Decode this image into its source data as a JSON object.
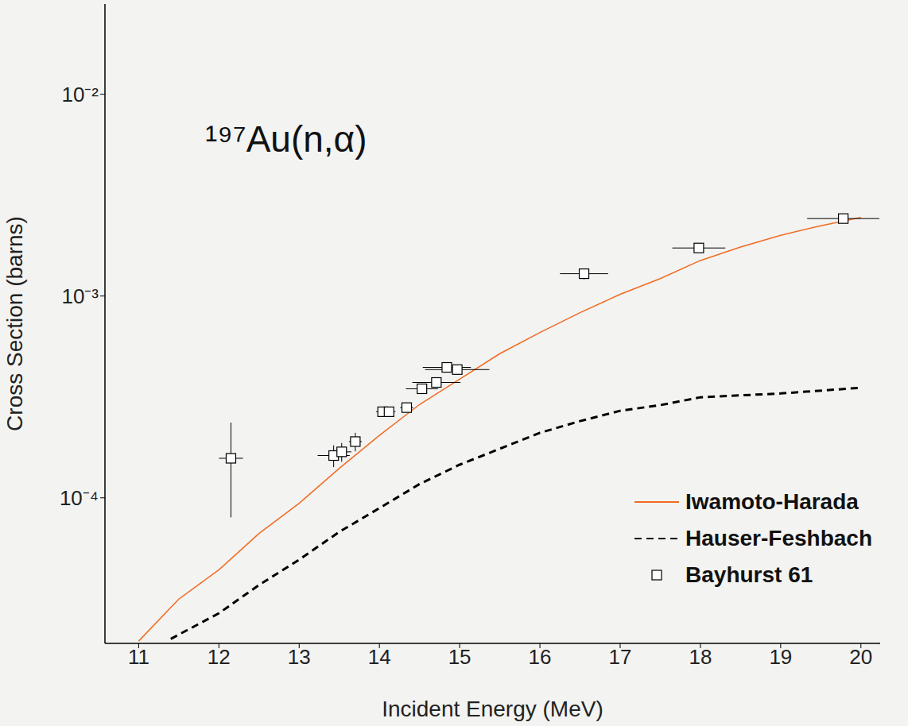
{
  "chart_data": {
    "type": "line",
    "title": "¹⁹⁷Au(n,α)",
    "x_label": "Incident Energy (MeV)",
    "y_label": "Cross Section (barns)",
    "log": "y",
    "grid": false,
    "legend": "lower right",
    "xlim": [
      10.58,
      20.24
    ],
    "xticks": [
      11,
      12,
      13,
      14,
      15,
      16,
      17,
      18,
      19,
      20
    ],
    "ylim": [
      1.9e-05,
      0.028
    ],
    "yticks": [
      {
        "value": 0.0001,
        "label": "10⁻⁴"
      },
      {
        "value": 0.001,
        "label": "10⁻³"
      },
      {
        "value": 0.01,
        "label": "10⁻²"
      }
    ],
    "series": [
      {
        "name": "Iwamoto-Harada",
        "type": "line",
        "color": "#f26b21",
        "line_style": "solid",
        "x": [
          11.0,
          11.5,
          12.0,
          12.5,
          13.0,
          13.5,
          14.0,
          14.5,
          15.0,
          15.5,
          16.0,
          16.5,
          17.0,
          17.5,
          18.0,
          18.5,
          19.0,
          19.5,
          20.0
        ],
        "values": [
          1.95e-05,
          3.15e-05,
          4.4e-05,
          6.66e-05,
          9.4e-05,
          0.00014,
          0.000204,
          0.00029,
          0.000387,
          0.000518,
          0.000659,
          0.000827,
          0.00102,
          0.00122,
          0.0015,
          0.00175,
          0.002,
          0.00223,
          0.00245
        ]
      },
      {
        "name": "Hauser-Feshbach",
        "type": "line",
        "color": "#000000",
        "line_style": "dashed",
        "x": [
          11.4,
          12.0,
          12.5,
          13.0,
          13.5,
          14.0,
          14.5,
          15.0,
          15.5,
          16.0,
          16.5,
          17.0,
          17.5,
          18.0,
          19.0,
          20.0
        ],
        "values": [
          2e-05,
          2.68e-05,
          3.7e-05,
          4.94e-05,
          6.78e-05,
          8.89e-05,
          0.000117,
          0.000146,
          0.000175,
          0.00021,
          0.00024,
          0.00027,
          0.000288,
          0.000315,
          0.000329,
          0.000351
        ]
      },
      {
        "name": "Bayhurst 61",
        "type": "scatter",
        "color": "#000000",
        "marker": "square",
        "x": [
          12.15,
          13.43,
          13.53,
          13.7,
          14.04,
          14.12,
          14.34,
          14.53,
          14.71,
          14.84,
          14.97,
          16.55,
          17.98,
          19.78
        ],
        "values": [
          0.000157,
          0.000162,
          0.000169,
          0.00019,
          0.000267,
          0.000267,
          0.00028,
          0.000347,
          0.000373,
          0.000443,
          0.000432,
          0.00129,
          0.00173,
          0.00242
        ],
        "x_err": [
          0.15,
          0.2,
          0.12,
          0.08,
          0.08,
          0.08,
          0.08,
          0.2,
          0.3,
          0.3,
          0.4,
          0.3,
          0.33,
          0.45
        ],
        "y_err": [
          [
            7.7e-05,
            7.9e-05
          ],
          [
            2e-05,
            2e-05
          ],
          [
            1.8e-05,
            1.8e-05
          ],
          [
            2e-05,
            2e-05
          ],
          [
            1.5e-05,
            1.5e-05
          ],
          [
            1.5e-05,
            1.5e-05
          ],
          [
            1.5e-05,
            1.5e-05
          ],
          [
            1.5e-05,
            1.5e-05
          ],
          [
            1.5e-05,
            1.5e-05
          ],
          [
            1.5e-05,
            1.5e-05
          ],
          [
            1.5e-05,
            1.5e-05
          ],
          [
            8e-05,
            8e-05
          ],
          [
            9e-05,
            9e-05
          ],
          [
            0.00012,
            0.00012
          ]
        ]
      }
    ]
  }
}
